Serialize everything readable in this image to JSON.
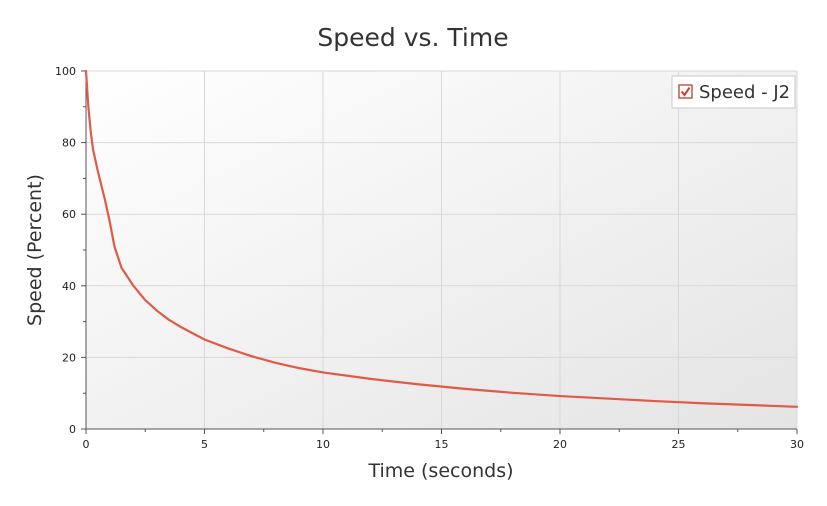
{
  "chart_data": {
    "type": "line",
    "title": "Speed vs. Time",
    "xlabel": "Time (seconds)",
    "ylabel": "Speed (Percent)",
    "xlim": [
      0,
      30
    ],
    "ylim": [
      0,
      100
    ],
    "xticks": [
      0,
      5,
      10,
      15,
      20,
      25,
      30
    ],
    "yticks": [
      0,
      20,
      40,
      60,
      80,
      100
    ],
    "grid": true,
    "legend_position": "top-right",
    "series": [
      {
        "name": "Speed - J2",
        "color": "#e05a47",
        "legend_checked": true,
        "x": [
          0,
          0.05,
          0.1,
          0.2,
          0.3,
          0.5,
          0.8,
          1.0,
          1.2,
          1.5,
          1.8,
          2.0,
          2.5,
          3.0,
          3.5,
          4.0,
          5.0,
          6.0,
          7.0,
          8.0,
          9.0,
          10.0,
          12.0,
          14.0,
          16.0,
          18.0,
          20.0,
          22.0,
          24.0,
          26.0,
          28.0,
          30.0
        ],
        "values": [
          100,
          95,
          90,
          83,
          78,
          72,
          64,
          58,
          51,
          45,
          42,
          40,
          36,
          33,
          30.5,
          28.5,
          25,
          22.5,
          20.3,
          18.5,
          17,
          15.8,
          14,
          12.5,
          11.2,
          10.1,
          9.2,
          8.5,
          7.8,
          7.2,
          6.7,
          6.2
        ]
      }
    ]
  },
  "colors": {
    "plot_gradient_top": "#ffffff",
    "plot_gradient_bottom": "#e6e6e6",
    "grid": "#d8d8d8",
    "axis": "#555555"
  },
  "icons": {
    "legend_checkbox": "checkmark-icon"
  }
}
